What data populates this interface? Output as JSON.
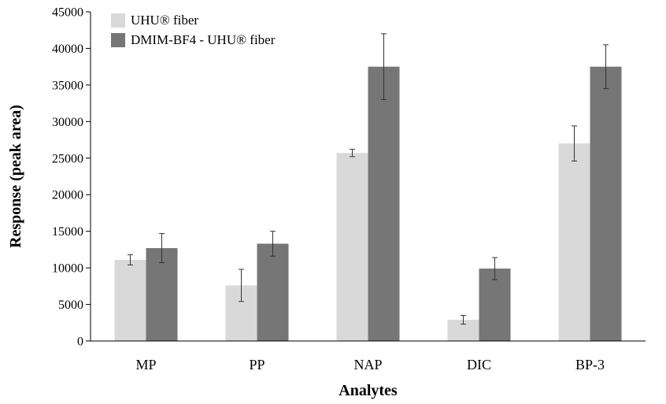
{
  "chart_data": {
    "type": "bar",
    "title": "",
    "xlabel": "Analytes",
    "ylabel": "Response (peak area)",
    "ylim": [
      0,
      45000
    ],
    "yticks": [
      0,
      5000,
      10000,
      15000,
      20000,
      25000,
      30000,
      35000,
      40000,
      45000
    ],
    "categories": [
      "MP",
      "PP",
      "NAP",
      "DIC",
      "BP-3"
    ],
    "grid": false,
    "legend_position": "top-left",
    "series": [
      {
        "name": "UHU® fiber",
        "color": "#d9d9d9",
        "values": [
          11100,
          7600,
          25700,
          2900,
          27000
        ],
        "errors": [
          700,
          2200,
          500,
          600,
          2400
        ]
      },
      {
        "name": "DMIM-BF4 - UHU® fiber",
        "color": "#767676",
        "values": [
          12700,
          13300,
          37500,
          9900,
          37500
        ],
        "errors": [
          2000,
          1700,
          4500,
          1500,
          3000
        ]
      }
    ]
  }
}
